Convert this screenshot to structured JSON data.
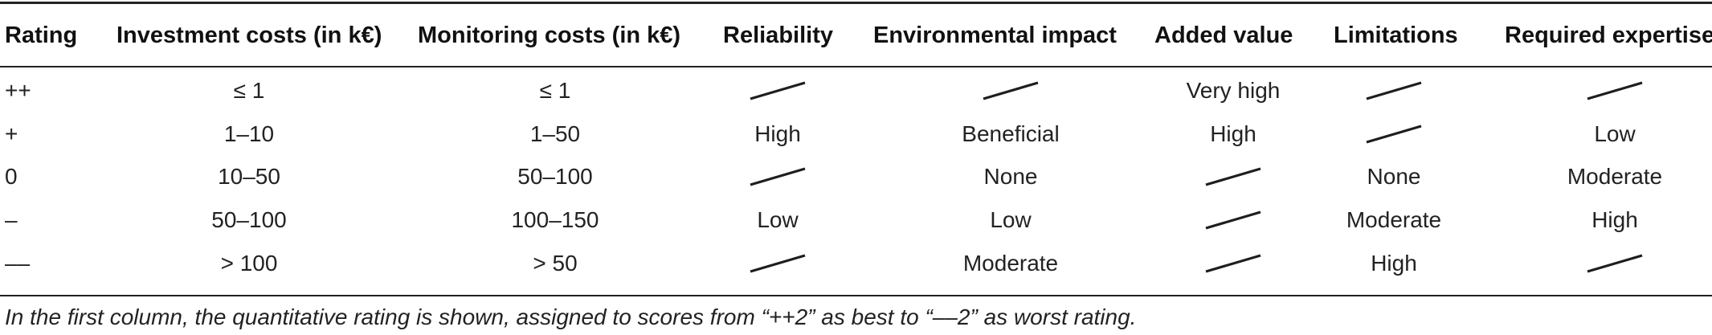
{
  "table": {
    "headers": [
      "Rating",
      "Investment costs (in k€)",
      "Monitoring costs (in k€)",
      "Reliability",
      "Environmental impact",
      "Added value",
      "Limitations",
      "Required expertise"
    ],
    "rows": [
      [
        "++",
        "≤ 1",
        "≤ 1",
        "",
        "",
        "Very high",
        "",
        ""
      ],
      [
        "+",
        "1–10",
        "1–50",
        "High",
        "Beneficial",
        "High",
        "",
        "Low"
      ],
      [
        "0",
        "10–50",
        "50–100",
        "",
        "None",
        "",
        "None",
        "Moderate"
      ],
      [
        "–",
        "50–100",
        "100–150",
        "Low",
        "Low",
        "",
        "Moderate",
        "High"
      ],
      [
        "––",
        "> 100",
        "> 50",
        "",
        "Moderate",
        "",
        "High",
        ""
      ]
    ]
  },
  "footnote": "In the first column, the quantitative rating is shown, assigned to scores from “++2” as best to “––2” as worst rating."
}
